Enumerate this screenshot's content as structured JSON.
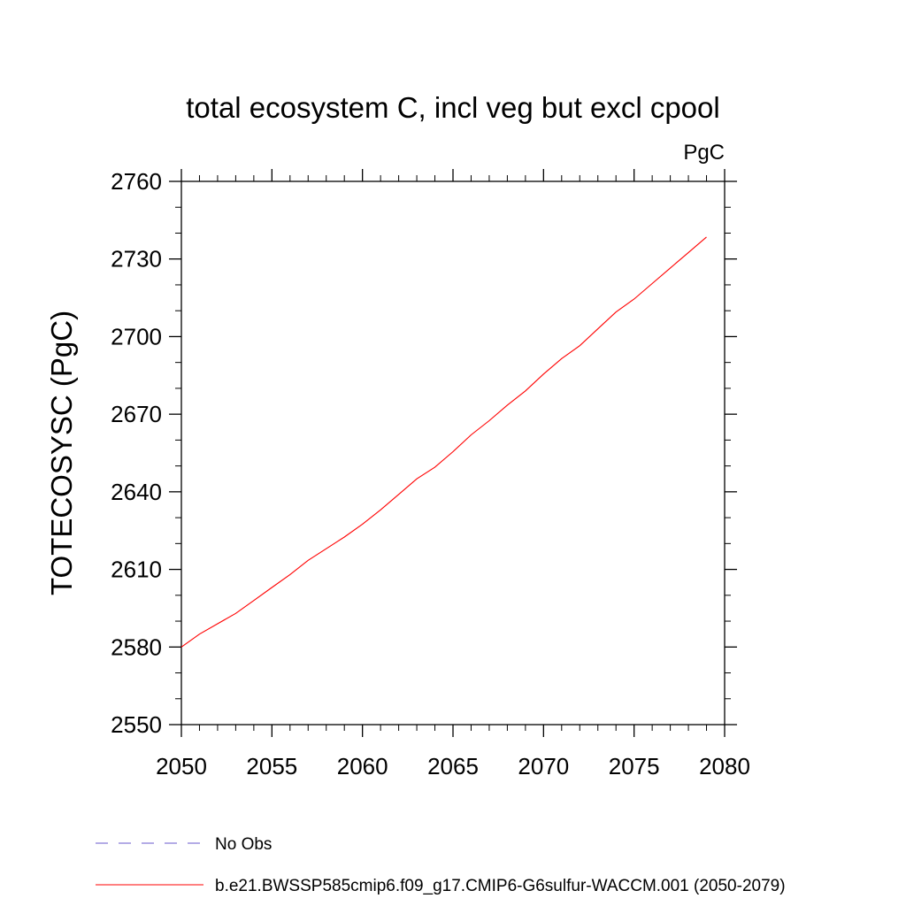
{
  "chart_data": {
    "type": "line",
    "title": "total ecosystem C, incl veg but excl cpool",
    "units": "PgC",
    "ylabel": "TOTECOSYSC  (PgC)",
    "xlabel": "",
    "xlim": [
      2050,
      2080
    ],
    "ylim": [
      2550,
      2760
    ],
    "x_ticks": [
      2050,
      2055,
      2060,
      2065,
      2070,
      2075,
      2080
    ],
    "y_ticks": [
      2550,
      2580,
      2610,
      2640,
      2670,
      2700,
      2730,
      2760
    ],
    "legend": [
      {
        "label": "No Obs",
        "color": "#6a5acd",
        "style": "dashed"
      },
      {
        "label": "b.e21.BWSSP585cmip6.f09_g17.CMIP6-G6sulfur-WACCM.001 (2050-2079)",
        "color": "#ff0000",
        "style": "solid"
      }
    ],
    "series": [
      {
        "color": "#ff0000",
        "x": [
          2050,
          2051,
          2052,
          2053,
          2054,
          2055,
          2056,
          2057,
          2058,
          2059,
          2060,
          2061,
          2062,
          2063,
          2064,
          2065,
          2066,
          2067,
          2068,
          2069,
          2070,
          2071,
          2072,
          2073,
          2074,
          2075,
          2076,
          2077,
          2078,
          2079
        ],
        "values": [
          2580,
          2585,
          2589,
          2593,
          2598,
          2603,
          2608,
          2613.5,
          2618,
          2622.5,
          2627.5,
          2633,
          2639,
          2645,
          2649.5,
          2655.5,
          2662,
          2667.5,
          2673.5,
          2679,
          2685.5,
          2691.5,
          2696.5,
          2703,
          2709.5,
          2714.5,
          2720.5,
          2726.5,
          2732.5,
          2738.5
        ]
      }
    ]
  }
}
